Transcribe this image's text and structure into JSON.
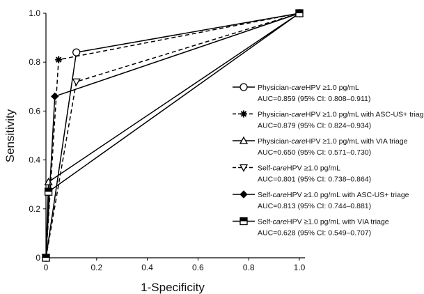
{
  "chart_data": {
    "type": "line",
    "title": "",
    "xlabel": "1-Specificity",
    "ylabel": "Sensitivity",
    "xlim": [
      0,
      1
    ],
    "ylim": [
      0,
      1
    ],
    "x_ticks": [
      "0",
      "0.2",
      "0.4",
      "0.6",
      "0.8",
      "1.0"
    ],
    "y_ticks": [
      "0",
      "0.2",
      "0.4",
      "0.6",
      "0.8",
      "1.0"
    ],
    "grid": false,
    "legend_position": "right",
    "series": [
      {
        "name_parts": [
          "Physician-",
          "care",
          "HPV ≥1.0 pg/mL"
        ],
        "auc": "AUC=0.859 (95% CI: 0.808–0.911)",
        "marker": "circle-open",
        "line": "solid",
        "points": [
          [
            0,
            0
          ],
          [
            0.12,
            0.84
          ],
          [
            1,
            1
          ]
        ]
      },
      {
        "name_parts": [
          "Physician-",
          "care",
          "HPV ≥1.0 pg/mL with ASC-US+ triage"
        ],
        "auc": "AUC=0.879 (95% CI: 0.824–0.934)",
        "marker": "asterisk",
        "line": "dashed",
        "points": [
          [
            0,
            0
          ],
          [
            0.05,
            0.81
          ],
          [
            1,
            1
          ]
        ]
      },
      {
        "name_parts": [
          "Physician-",
          "care",
          "HPV ≥1.0 pg/mL with VIA triage"
        ],
        "auc": "AUC=0.650 (95% CI: 0.571–0.730)",
        "marker": "triangle-open",
        "line": "solid",
        "points": [
          [
            0,
            0
          ],
          [
            0.01,
            0.31
          ],
          [
            1,
            1
          ]
        ]
      },
      {
        "name_parts": [
          "Self-",
          "care",
          "HPV ≥1.0 pg/mL"
        ],
        "auc": "AUC=0.801 (95% CI: 0.738–0.864)",
        "marker": "triangle-down-open",
        "line": "dashed",
        "points": [
          [
            0,
            0
          ],
          [
            0.12,
            0.72
          ],
          [
            1,
            1
          ]
        ]
      },
      {
        "name_parts": [
          "Self-",
          "care",
          "HPV ≥1.0 pg/mL with ASC-US+ triage"
        ],
        "auc": "AUC=0.813 (95% CI: 0.744–0.881)",
        "marker": "diamond",
        "line": "solid",
        "points": [
          [
            0,
            0
          ],
          [
            0.035,
            0.66
          ],
          [
            1,
            1
          ]
        ]
      },
      {
        "name_parts": [
          "Self-",
          "care",
          "HPV ≥1.0 pg/mL with VIA triage"
        ],
        "auc": "AUC=0.628 (95% CI: 0.549–0.707)",
        "marker": "square-half",
        "line": "solid",
        "points": [
          [
            0,
            0
          ],
          [
            0.01,
            0.27
          ],
          [
            1,
            1
          ]
        ]
      }
    ]
  }
}
